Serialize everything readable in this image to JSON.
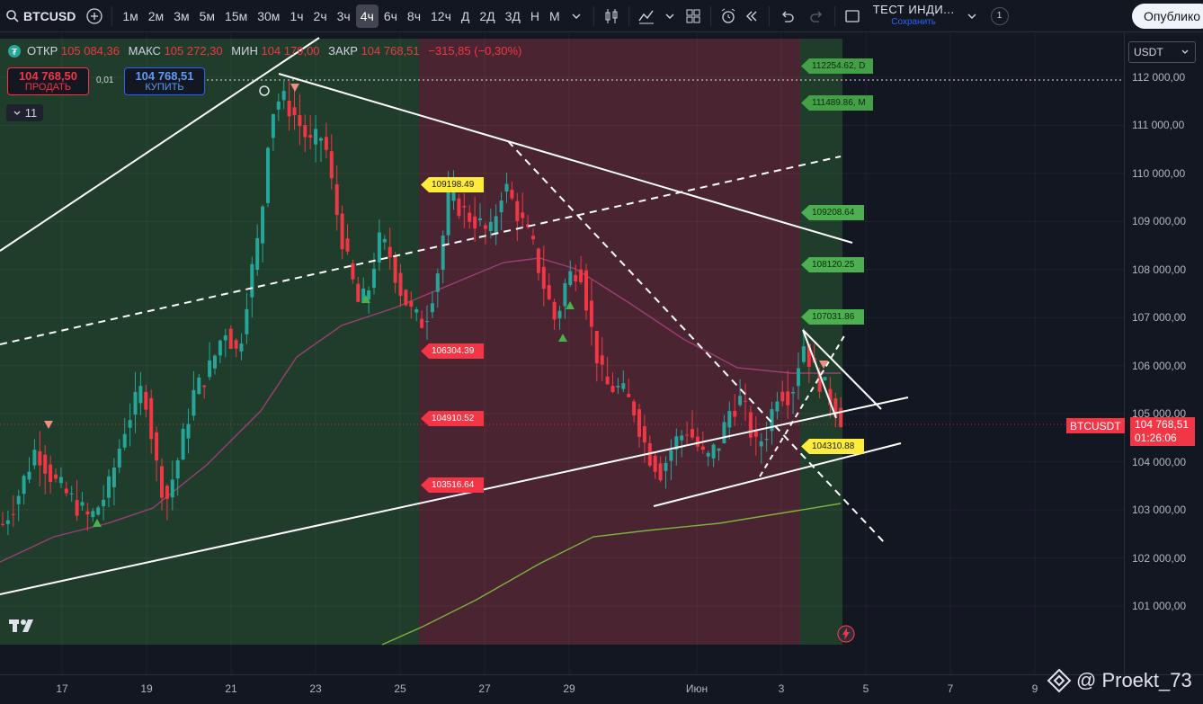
{
  "toolbar": {
    "symbol": "BTCUSD",
    "intervals": [
      "1м",
      "2м",
      "3м",
      "5м",
      "15м",
      "30м",
      "1ч",
      "2ч",
      "3ч",
      "4ч",
      "6ч",
      "8ч",
      "12ч",
      "Д",
      "2Д",
      "3Д",
      "Н",
      "М"
    ],
    "active_interval": "4ч",
    "layout_title": "ТЕСТ ИНДИ...",
    "save_label": "Сохранить",
    "layout_count": "1",
    "publish_label": "Опублико"
  },
  "legend": {
    "open_label": "ОТКР",
    "open": "105 084,36",
    "high_label": "МАКС",
    "high": "105 272,30",
    "low_label": "МИН",
    "low": "104 179,00",
    "close_label": "ЗАКР",
    "close": "104 768,51",
    "change": "−315,85 (−0,30%)"
  },
  "trade": {
    "sell_price": "104 768,50",
    "sell_label": "ПРОДАТЬ",
    "buy_price": "104 768,51",
    "buy_label": "КУПИТЬ",
    "spread": "0,01"
  },
  "indicator_count": "11",
  "currency": "USDT",
  "price_axis": {
    "ticks": [
      "112 000,00",
      "111 000,00",
      "110 000,00",
      "109 000,00",
      "108 000,00",
      "107 000,00",
      "106 000,00",
      "105 000,00",
      "104 000,00",
      "103 000,00",
      "102 000,00",
      "101 000,00"
    ],
    "current_price": "104 768,51",
    "countdown": "01:26:06",
    "symbol_tag": "BTCUSDT"
  },
  "time_axis": {
    "ticks": [
      "17",
      "19",
      "21",
      "23",
      "25",
      "27",
      "29",
      "Июн",
      "3",
      "5",
      "7",
      "9"
    ]
  },
  "levels": {
    "right_green": [
      {
        "text": "112254.62, D"
      },
      {
        "text": "111489.86, M"
      },
      {
        "text": "109208.64"
      },
      {
        "text": "108120.25"
      },
      {
        "text": "107031.86"
      }
    ],
    "mid_yellow": "109198.49",
    "mid_red": [
      "106304.39",
      "104910.52",
      "103516.64"
    ],
    "right_yellow": "104310.88"
  },
  "watermark": "@ Proekt_73",
  "colors": {
    "background": "#131722",
    "bull": "#26a69a",
    "bear": "#f23645",
    "zone_green": "#1f3d2a",
    "zone_red": "#4a2430",
    "accent": "#2962ff"
  },
  "chart_data": {
    "type": "candlestick",
    "price_range": [
      100500,
      112600
    ],
    "note_series": "BTCUSD 4h"
  }
}
